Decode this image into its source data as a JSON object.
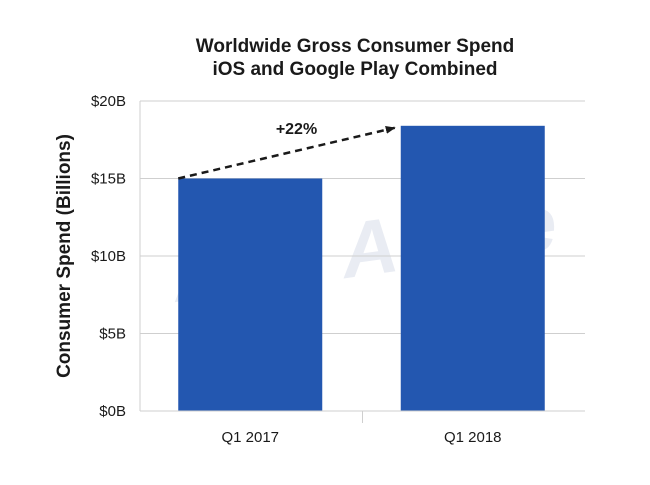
{
  "chart_data": {
    "type": "bar",
    "title": "Worldwide Gross Consumer Spend",
    "subtitle": "iOS and Google Play Combined",
    "xlabel": "",
    "ylabel": "Consumer Spend (Billions)",
    "categories": [
      "Q1 2017",
      "Q1 2018"
    ],
    "values": [
      15.0,
      18.4
    ],
    "ylim": [
      0,
      20
    ],
    "yticks": [
      0,
      5,
      10,
      15,
      20
    ],
    "ytick_labels": [
      "$0B",
      "$5B",
      "$10B",
      "$15B",
      "$20B"
    ],
    "grid": true,
    "annotation": {
      "text": "+22%",
      "from": "Q1 2017",
      "to": "Q1 2018",
      "style": "dashed-arrow"
    },
    "watermark": "App Annie",
    "colors": {
      "bar": "#2357b0",
      "grid": "#cfcfcf",
      "text": "#1a1a1a"
    }
  }
}
